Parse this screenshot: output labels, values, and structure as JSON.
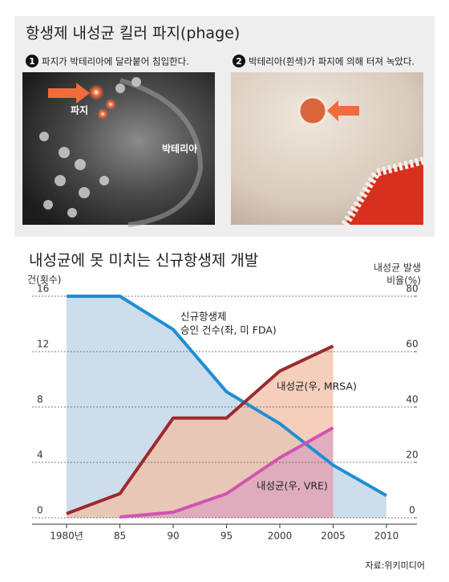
{
  "header": {
    "title": "항생제 내성균 킬러 파지(phage)"
  },
  "panels": [
    {
      "number": "1",
      "caption": "파지가 박테리아에 달라붙어 침입한다.",
      "labels": [
        "파지",
        "박테리아"
      ]
    },
    {
      "number": "2",
      "caption": "박테리아(흰색)가 파지에 의해 터져 녹았다."
    }
  ],
  "chart_data": {
    "type": "line",
    "title": "내성균에 못 미치는 신규항생제 개발",
    "ylabel": "건(횟수)",
    "y2label": [
      "내성균 발생",
      "비율(%)"
    ],
    "categories": [
      "1980년",
      "85",
      "90",
      "95",
      "2000",
      "2005",
      "2010"
    ],
    "ylim": [
      0,
      16
    ],
    "yticks": [
      0,
      4,
      8,
      12,
      16
    ],
    "y2lim": [
      0,
      80
    ],
    "y2ticks": [
      0,
      20,
      40,
      60,
      80
    ],
    "grid": true,
    "area": true,
    "series": [
      {
        "name": [
          "신규항생제",
          "승인 건수(좌, 미 FDA)"
        ],
        "color": "#1e8fd2",
        "fill": "#bcd2e6",
        "values": [
          16,
          16,
          13.6,
          9.1,
          6.8,
          3.8,
          1.6
        ]
      },
      {
        "name": "내성균(우, MRSA)",
        "color": "#9b2a2e",
        "fill": "#f1bfa6",
        "axis": "y2",
        "values": [
          1.5,
          8.7,
          36,
          36,
          53,
          62,
          null
        ]
      },
      {
        "name": "내성균(우, VRE)",
        "color": "#d054b2",
        "fill": "#d9a3bf",
        "axis": "y2",
        "values": [
          null,
          0.3,
          2,
          8.7,
          21.7,
          32.5,
          null
        ]
      }
    ]
  },
  "source": "자료:위키미디어"
}
